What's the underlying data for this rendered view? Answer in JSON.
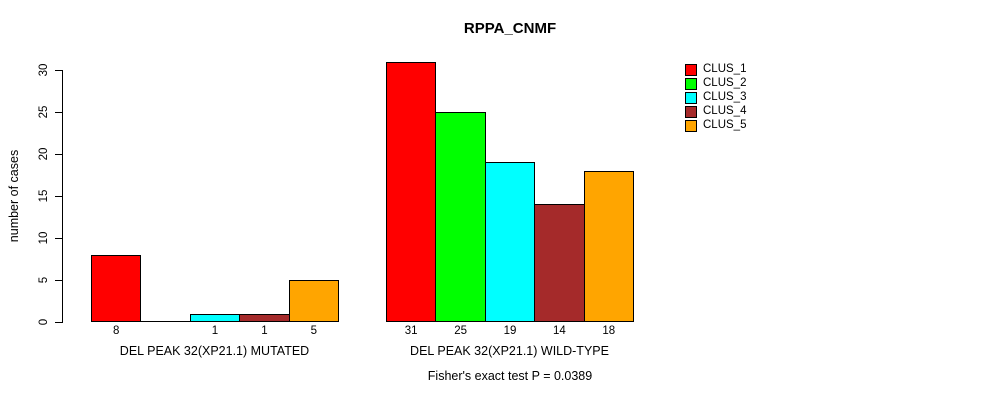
{
  "title": "RPPA_CNMF",
  "footer": "Fisher's exact test P = 0.0389",
  "y_axis": {
    "label": "number of cases",
    "ticks": [
      0,
      5,
      10,
      15,
      20,
      25,
      30
    ]
  },
  "legend": {
    "position": "top-right",
    "entries": [
      {
        "label": "CLUS_1",
        "color": "#ff0000"
      },
      {
        "label": "CLUS_2",
        "color": "#00ff00"
      },
      {
        "label": "CLUS_3",
        "color": "#00ffff"
      },
      {
        "label": "CLUS_4",
        "color": "#a52a2a"
      },
      {
        "label": "CLUS_5",
        "color": "#ffa500"
      }
    ]
  },
  "chart_data": {
    "type": "bar",
    "title": "RPPA_CNMF",
    "xlabel": "",
    "ylabel": "number of cases",
    "ylim": [
      0,
      31
    ],
    "yticks": [
      0,
      5,
      10,
      15,
      20,
      25,
      30
    ],
    "grid": false,
    "legend_position": "top-right",
    "series_names": [
      "CLUS_1",
      "CLUS_2",
      "CLUS_3",
      "CLUS_4",
      "CLUS_5"
    ],
    "series_colors": [
      "#ff0000",
      "#00ff00",
      "#00ffff",
      "#a52a2a",
      "#ffa500"
    ],
    "groups": [
      {
        "label": "DEL PEAK 32(XP21.1) MUTATED",
        "values": [
          8,
          0,
          1,
          1,
          5
        ],
        "bar_labels": [
          "8",
          "",
          "1",
          "1",
          "5"
        ]
      },
      {
        "label": "DEL PEAK 32(XP21.1) WILD-TYPE",
        "values": [
          31,
          25,
          19,
          14,
          18
        ],
        "bar_labels": [
          "31",
          "25",
          "19",
          "14",
          "18"
        ]
      }
    ],
    "annotation": "Fisher's exact test P = 0.0389"
  }
}
